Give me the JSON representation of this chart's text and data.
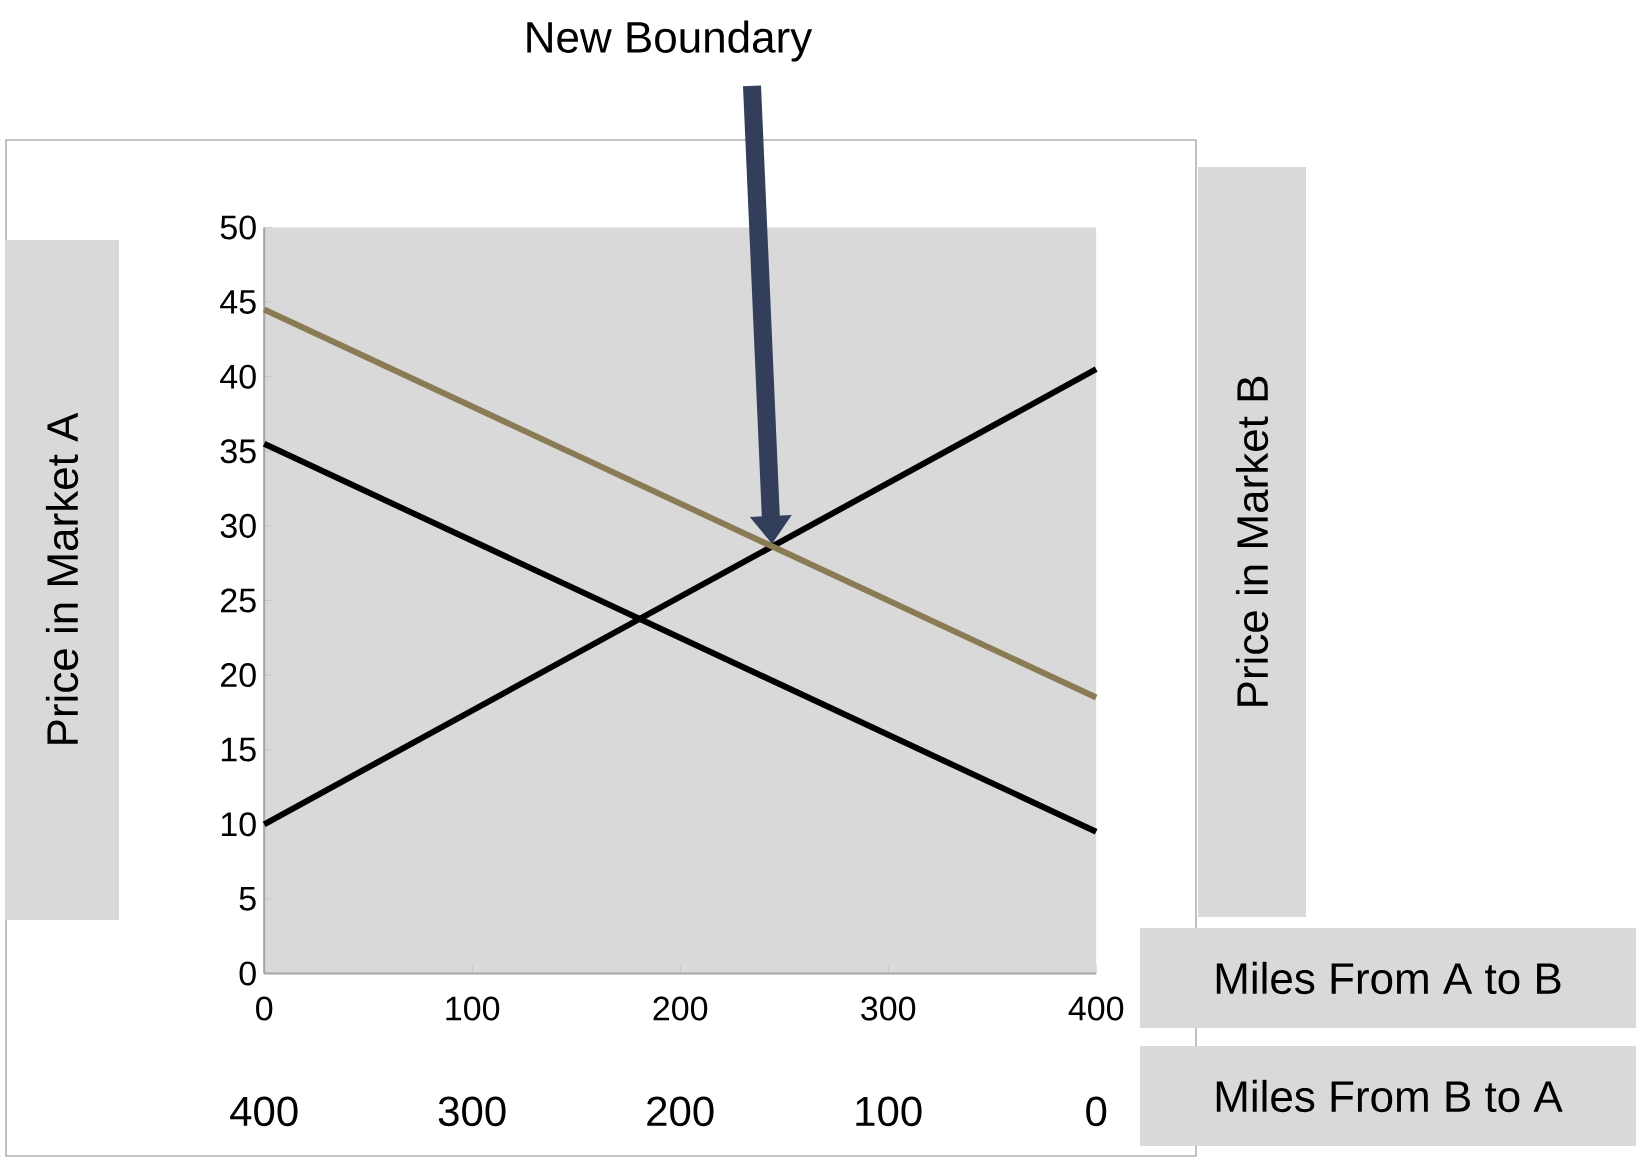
{
  "chart_data": {
    "type": "line",
    "xlabel": "Miles From A to B",
    "ylabel": "Price in Market A",
    "y2label": "Price in Market B",
    "x2label": "Miles From B to A",
    "x": [
      0,
      400
    ],
    "series": [
      {
        "color": "#000000",
        "values": [
          10,
          40.5
        ]
      },
      {
        "color": "#000000",
        "values": [
          35.5,
          9.5
        ]
      },
      {
        "color": "#8b7b55",
        "values": [
          44.5,
          18.5
        ]
      }
    ],
    "xlim": [
      0,
      400
    ],
    "xticks": [
      0,
      100,
      200,
      300,
      400
    ],
    "ylim": [
      0,
      50
    ],
    "yticks": [
      0,
      5,
      10,
      15,
      20,
      25,
      30,
      35,
      40,
      45,
      50
    ],
    "x2lim": [
      400,
      0
    ],
    "x2ticks": [
      400,
      300,
      200,
      100,
      0
    ],
    "annotations": [
      "New Boundary"
    ],
    "grid": false,
    "marker": "none",
    "line_style": "solid"
  }
}
